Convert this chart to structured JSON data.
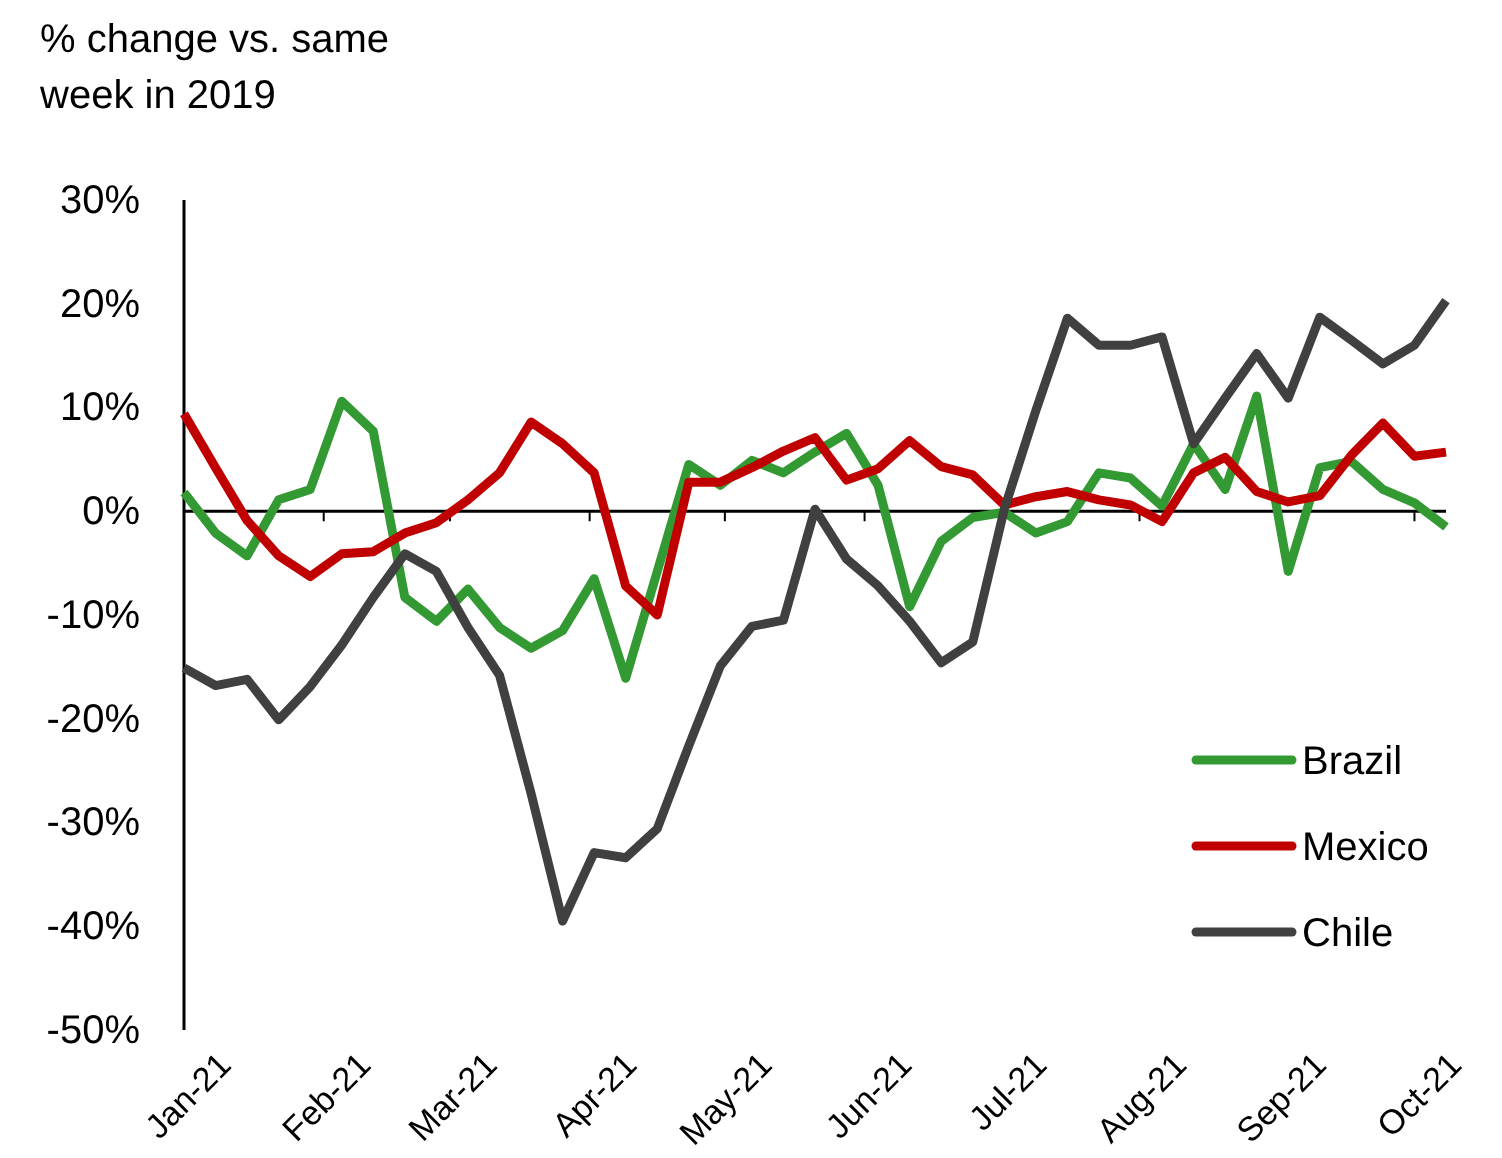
{
  "chart_data": {
    "type": "line",
    "ylabel": "% change vs. same week in 2019",
    "x": [
      "2021-01-01",
      "2021-01-08",
      "2021-01-15",
      "2021-01-22",
      "2021-01-29",
      "2021-02-05",
      "2021-02-12",
      "2021-02-19",
      "2021-02-26",
      "2021-03-05",
      "2021-03-12",
      "2021-03-19",
      "2021-03-26",
      "2021-04-02",
      "2021-04-09",
      "2021-04-16",
      "2021-04-23",
      "2021-04-30",
      "2021-05-07",
      "2021-05-14",
      "2021-05-21",
      "2021-05-28",
      "2021-06-04",
      "2021-06-11",
      "2021-06-18",
      "2021-06-25",
      "2021-07-02",
      "2021-07-09",
      "2021-07-16",
      "2021-07-23",
      "2021-07-30",
      "2021-08-06",
      "2021-08-13",
      "2021-08-20",
      "2021-08-27",
      "2021-09-03",
      "2021-09-10",
      "2021-09-17",
      "2021-09-24",
      "2021-10-01",
      "2021-10-08"
    ],
    "series": [
      {
        "name": "Brazil",
        "color": "#339933",
        "values": [
          1.8,
          -2.1,
          -4.3,
          1.1,
          2.1,
          10.6,
          7.7,
          -8.3,
          -10.6,
          -7.5,
          -11.2,
          -13.2,
          -11.5,
          -6.5,
          -16.1,
          -5.8,
          4.5,
          2.5,
          4.9,
          3.7,
          5.7,
          7.5,
          2.5,
          -9.2,
          -2.9,
          -0.6,
          -0.1,
          -2.1,
          -1.0,
          3.7,
          3.2,
          0.5,
          6.5,
          2.1,
          11.1,
          -5.8,
          4.2,
          4.8,
          2.1,
          0.8,
          -1.5
        ]
      },
      {
        "name": "Mexico",
        "color": "#c00000",
        "values": [
          9.4,
          4.2,
          -0.9,
          -4.3,
          -6.3,
          -4.1,
          -3.9,
          -2.1,
          -1.1,
          1.1,
          3.7,
          8.6,
          6.5,
          3.7,
          -7.2,
          -10.0,
          2.8,
          2.8,
          4.2,
          5.8,
          7.1,
          3.0,
          4.1,
          6.8,
          4.3,
          3.5,
          0.6,
          1.4,
          1.9,
          1.1,
          0.6,
          -1.0,
          3.7,
          5.2,
          1.9,
          0.9,
          1.5,
          5.4,
          8.5,
          5.3,
          5.7
        ]
      },
      {
        "name": "Chile",
        "color": "#404040",
        "values": [
          -15.1,
          -16.8,
          -16.2,
          -20.1,
          -16.9,
          -12.9,
          -8.3,
          -4.1,
          -5.8,
          -11.2,
          -15.8,
          -27.2,
          -39.5,
          -32.9,
          -33.4,
          -30.6,
          -22.6,
          -14.9,
          -11.1,
          -10.5,
          0.2,
          -4.6,
          -7.2,
          -10.6,
          -14.6,
          -12.6,
          0.2,
          9.7,
          18.6,
          16.0,
          16.0,
          16.8,
          6.5,
          10.9,
          15.2,
          10.9,
          18.7,
          16.5,
          14.2,
          16.0,
          20.3
        ]
      }
    ],
    "xlim": [
      "2021-01-01",
      "2021-10-08"
    ],
    "xticks": [
      {
        "value": "2021-01-01",
        "label": "Jan-21"
      },
      {
        "value": "2021-02-01",
        "label": "Feb-21"
      },
      {
        "value": "2021-03-01",
        "label": "Mar-21"
      },
      {
        "value": "2021-04-01",
        "label": "Apr-21"
      },
      {
        "value": "2021-05-01",
        "label": "May-21"
      },
      {
        "value": "2021-06-01",
        "label": "Jun-21"
      },
      {
        "value": "2021-07-01",
        "label": "Jul-21"
      },
      {
        "value": "2021-08-01",
        "label": "Aug-21"
      },
      {
        "value": "2021-09-01",
        "label": "Sep-21"
      },
      {
        "value": "2021-10-01",
        "label": "Oct-21"
      }
    ],
    "ylim": [
      -50,
      30
    ],
    "yticks": [
      {
        "value": -50,
        "label": "-50%"
      },
      {
        "value": -40,
        "label": "-40%"
      },
      {
        "value": -30,
        "label": "-30%"
      },
      {
        "value": -20,
        "label": "-20%"
      },
      {
        "value": -10,
        "label": "-10%"
      },
      {
        "value": 0,
        "label": "0%"
      },
      {
        "value": 10,
        "label": "10%"
      },
      {
        "value": 20,
        "label": "20%"
      },
      {
        "value": 30,
        "label": "30%"
      }
    ],
    "legend": "bottom right",
    "marker": "none",
    "line_style": "solid"
  }
}
